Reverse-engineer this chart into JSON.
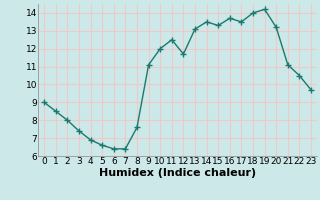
{
  "x": [
    0,
    1,
    2,
    3,
    4,
    5,
    6,
    7,
    8,
    9,
    10,
    11,
    12,
    13,
    14,
    15,
    16,
    17,
    18,
    19,
    20,
    21,
    22,
    23
  ],
  "y": [
    9.0,
    8.5,
    8.0,
    7.4,
    6.9,
    6.6,
    6.4,
    6.4,
    7.6,
    11.1,
    12.0,
    12.5,
    11.7,
    13.1,
    13.5,
    13.3,
    13.7,
    13.5,
    14.0,
    14.2,
    13.2,
    11.1,
    10.5,
    9.7
  ],
  "line_color": "#1a7a6e",
  "marker": "+",
  "marker_size": 4,
  "marker_lw": 1.0,
  "line_width": 1.0,
  "xlabel": "Humidex (Indice chaleur)",
  "xlim": [
    -0.5,
    23.5
  ],
  "ylim": [
    6,
    14.5
  ],
  "yticks": [
    6,
    7,
    8,
    9,
    10,
    11,
    12,
    13,
    14
  ],
  "xticks": [
    0,
    1,
    2,
    3,
    4,
    5,
    6,
    7,
    8,
    9,
    10,
    11,
    12,
    13,
    14,
    15,
    16,
    17,
    18,
    19,
    20,
    21,
    22,
    23
  ],
  "bg_color": "#cce8e8",
  "grid_color": "#f0c8c8",
  "tick_label_size": 6.5,
  "xlabel_size": 8,
  "xlabel_weight": "bold"
}
